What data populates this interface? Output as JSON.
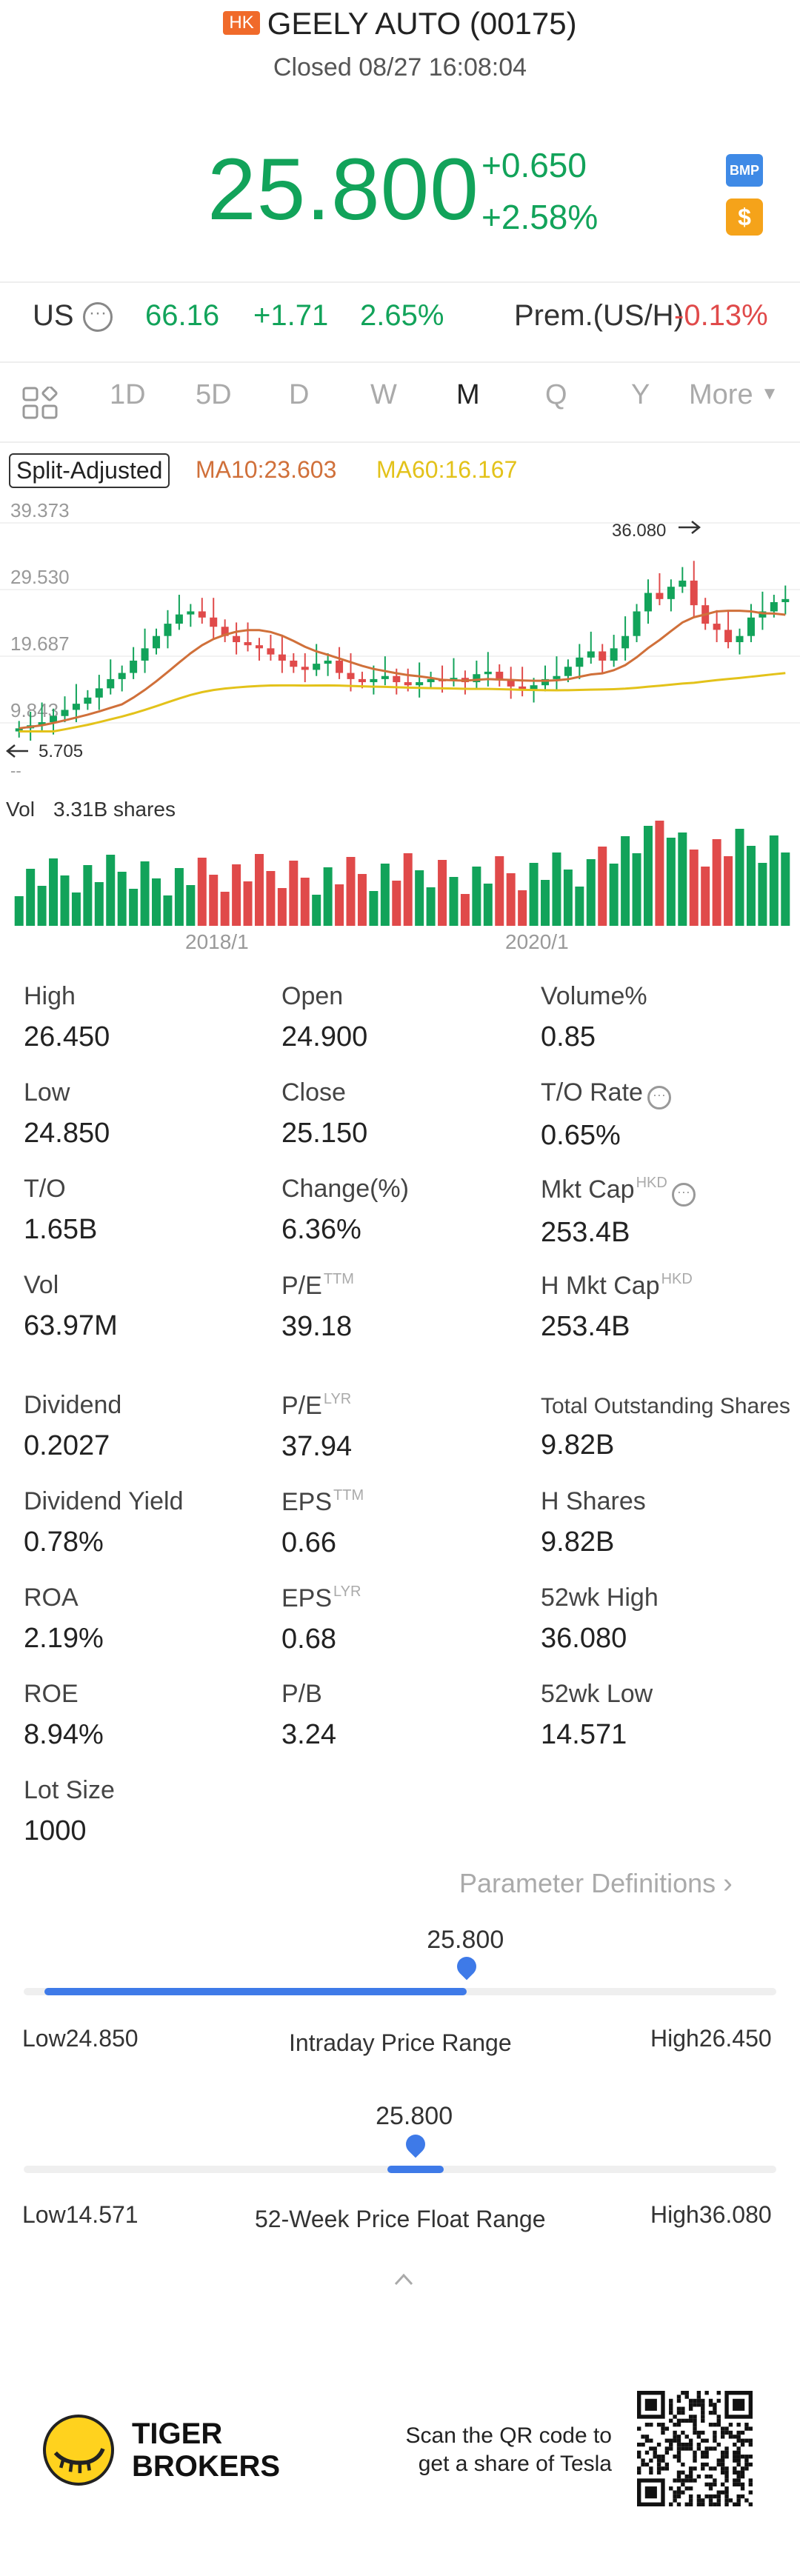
{
  "header": {
    "market_badge": "HK",
    "title": "GEELY AUTO (00175)",
    "status": "Closed 08/27 16:08:04"
  },
  "quote": {
    "price": "25.800",
    "change": "+0.650",
    "change_pct": "+2.58%",
    "badge_bmp": "BMP",
    "badge_dollar": "$",
    "color_up": "#12a35a",
    "color_down": "#e04a4a"
  },
  "us_row": {
    "label": "US",
    "price": "66.16",
    "change": "+1.71",
    "change_pct": "2.65%",
    "premium_label": "Prem.(US/H)",
    "premium_value": "-0.13%"
  },
  "tabs": [
    {
      "label": "1D",
      "active": false
    },
    {
      "label": "5D",
      "active": false
    },
    {
      "label": "D",
      "active": false
    },
    {
      "label": "W",
      "active": false
    },
    {
      "label": "M",
      "active": true
    },
    {
      "label": "Q",
      "active": false
    },
    {
      "label": "Y",
      "active": false
    },
    {
      "label": "More",
      "active": false
    }
  ],
  "chart": {
    "adjust_label": "Split-Adjusted",
    "ma10": "MA10:23.603",
    "ma60": "MA60:16.167",
    "vol_label": "Vol",
    "vol_value": "3.31B shares"
  },
  "chart_data": {
    "type": "candlestick",
    "y_ticks": [
      "39.373",
      "29.530",
      "19.687",
      "9.843"
    ],
    "ylim": [
      0,
      39.373
    ],
    "max_label": "36.080",
    "min_label": "5.705",
    "x_ticks": [
      "2018/1",
      "2020/1"
    ],
    "colors": {
      "up": "#12a35a",
      "down": "#e04a4a",
      "ma10": "#d0703a",
      "ma60": "#e3c21a"
    }
  },
  "stats": {
    "col1": [
      {
        "label": "High",
        "value": "26.450"
      },
      {
        "label": "Low",
        "value": "24.850"
      },
      {
        "label": "T/O",
        "value": "1.65B"
      },
      {
        "label": "Vol",
        "value": "63.97M"
      },
      {
        "label": "Dividend",
        "value": "0.2027"
      },
      {
        "label": "Dividend Yield",
        "value": "0.78%"
      },
      {
        "label": "ROA",
        "value": "2.19%"
      },
      {
        "label": "ROE",
        "value": "8.94%"
      },
      {
        "label": "Lot Size",
        "value": "1000"
      }
    ],
    "col2": [
      {
        "label": "Open",
        "sup": "",
        "value": "24.900"
      },
      {
        "label": "Close",
        "sup": "",
        "value": "25.150"
      },
      {
        "label": "Change(%)",
        "sup": "",
        "value": "6.36%"
      },
      {
        "label": "P/E",
        "sup": "TTM",
        "value": "39.18"
      },
      {
        "label": "P/E",
        "sup": "LYR",
        "value": "37.94"
      },
      {
        "label": "EPS",
        "sup": "TTM",
        "value": "0.66"
      },
      {
        "label": "EPS",
        "sup": "LYR",
        "value": "0.68"
      },
      {
        "label": "P/B",
        "sup": "",
        "value": "3.24"
      }
    ],
    "col3": [
      {
        "label": "Volume%",
        "sup": "",
        "value": "0.85"
      },
      {
        "label": "T/O Rate",
        "sup": "",
        "value": "0.65%"
      },
      {
        "label": "Mkt Cap",
        "sup": "HKD",
        "value": "253.4B"
      },
      {
        "label": "H Mkt Cap",
        "sup": "HKD",
        "value": "253.4B"
      },
      {
        "label": "Total Outstanding Shares",
        "sup": "",
        "value": "9.82B"
      },
      {
        "label": "H Shares",
        "sup": "",
        "value": "9.82B"
      },
      {
        "label": "52wk High",
        "sup": "",
        "value": "36.080"
      },
      {
        "label": "52wk Low",
        "sup": "",
        "value": "14.571"
      }
    ]
  },
  "param_definitions": "Parameter Definitions",
  "intraday_range": {
    "current": "25.800",
    "low_label": "Low",
    "low_value": "24.850",
    "high_label": "High",
    "high_value": "26.450",
    "title": "Intraday Price Range",
    "fraction": 0.594
  },
  "week52_range": {
    "current": "25.800",
    "low_label": "Low",
    "low_value": "14.571",
    "high_label": "High",
    "high_value": "36.080",
    "title": "52-Week Price Float Range",
    "fraction": 0.522
  },
  "footer": {
    "brand_line1": "TIGER",
    "brand_line2": "BROKERS",
    "scan_line1": "Scan the QR code to",
    "scan_line2": "get a share of Tesla"
  }
}
